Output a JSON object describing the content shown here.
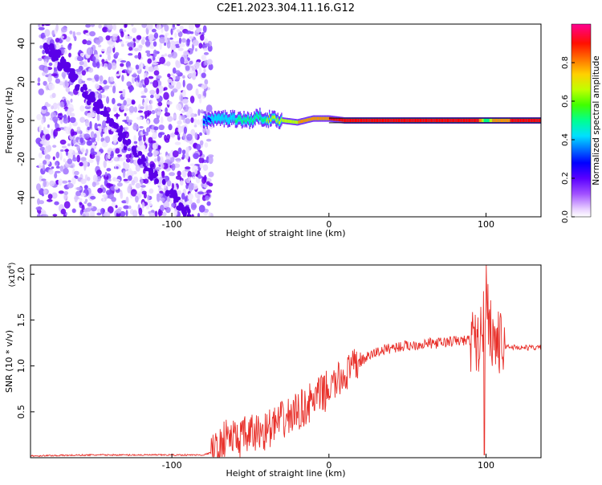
{
  "title": "C2E1.2023.304.11.16.G12",
  "colors": {
    "snr_line": "#e8302a",
    "spectrum_scale": [
      "#ffffff",
      "#e8d8ff",
      "#b070ff",
      "#6a00f0",
      "#0000ff",
      "#00d8ff",
      "#00ff80",
      "#c0ff00",
      "#ff9000",
      "#ff0000",
      "#ff00a0"
    ],
    "ridge_dark": "#101010"
  },
  "chart_data": [
    {
      "type": "heatmap",
      "title": "",
      "xlabel": "Height of straight line (km)",
      "ylabel": "Frequency (Hz)",
      "xlim": [
        -190,
        135
      ],
      "ylim": [
        -50,
        50
      ],
      "x_ticks": [
        "-100",
        "0",
        "100"
      ],
      "y_ticks": [
        "-40",
        "-20",
        "0",
        "20",
        "40"
      ],
      "x_tick_values": [
        -100,
        0,
        100
      ],
      "y_tick_values": [
        -40,
        -20,
        0,
        20,
        40
      ],
      "colorbar": {
        "label": "Normalized spectral amplitude",
        "range": [
          0,
          1
        ],
        "ticks": [
          "0.0",
          "0.2",
          "0.4",
          "0.6",
          "0.8"
        ],
        "tick_values": [
          0.0,
          0.2,
          0.4,
          0.6,
          0.8
        ]
      },
      "noise_region_x": [
        -190,
        -80
      ],
      "ridge": {
        "x": [
          -80,
          -70,
          -60,
          -50,
          -45,
          -40,
          -30,
          -20,
          -10,
          0,
          10,
          50,
          95,
          100,
          105,
          135
        ],
        "y": [
          0,
          1,
          1,
          0,
          2,
          1,
          0,
          -1,
          1,
          1,
          0,
          0,
          0,
          0,
          0,
          0
        ],
        "amp": [
          0.4,
          0.5,
          0.55,
          0.6,
          0.55,
          0.65,
          0.7,
          0.75,
          0.8,
          0.85,
          0.9,
          0.95,
          0.9,
          0.55,
          0.8,
          0.95
        ]
      }
    },
    {
      "type": "line",
      "title": "",
      "xlabel": "Height of straight line (km)",
      "ylabel": "SNR (10 * v/v)",
      "y_multiplier": "(x10",
      "y_multiplier_exp": "4",
      "y_multiplier_close": ")",
      "xlim": [
        -190,
        135
      ],
      "ylim": [
        0,
        2.1
      ],
      "x_ticks": [
        "-100",
        "0",
        "100"
      ],
      "y_ticks": [
        "0.5",
        "1.0",
        "1.5",
        "2.0"
      ],
      "x_tick_values": [
        -100,
        0,
        100
      ],
      "y_tick_values": [
        0.5,
        1.0,
        1.5,
        2.0
      ],
      "series": [
        {
          "x": [
            -190,
            -150,
            -100,
            -80,
            -70,
            -65,
            -60,
            -50,
            -40,
            -30,
            -20,
            -10,
            0,
            10,
            20,
            30,
            40,
            50,
            60,
            70,
            80,
            90,
            95,
            98,
            100,
            102,
            105,
            110,
            120,
            135
          ],
          "y": [
            0.02,
            0.03,
            0.03,
            0.03,
            0.08,
            0.25,
            0.2,
            0.25,
            0.3,
            0.4,
            0.5,
            0.62,
            0.75,
            0.9,
            1.05,
            1.15,
            1.2,
            1.22,
            1.24,
            1.25,
            1.27,
            1.28,
            1.25,
            1.4,
            1.9,
            1.45,
            1.3,
            1.22,
            1.2,
            1.2
          ]
        }
      ]
    }
  ]
}
